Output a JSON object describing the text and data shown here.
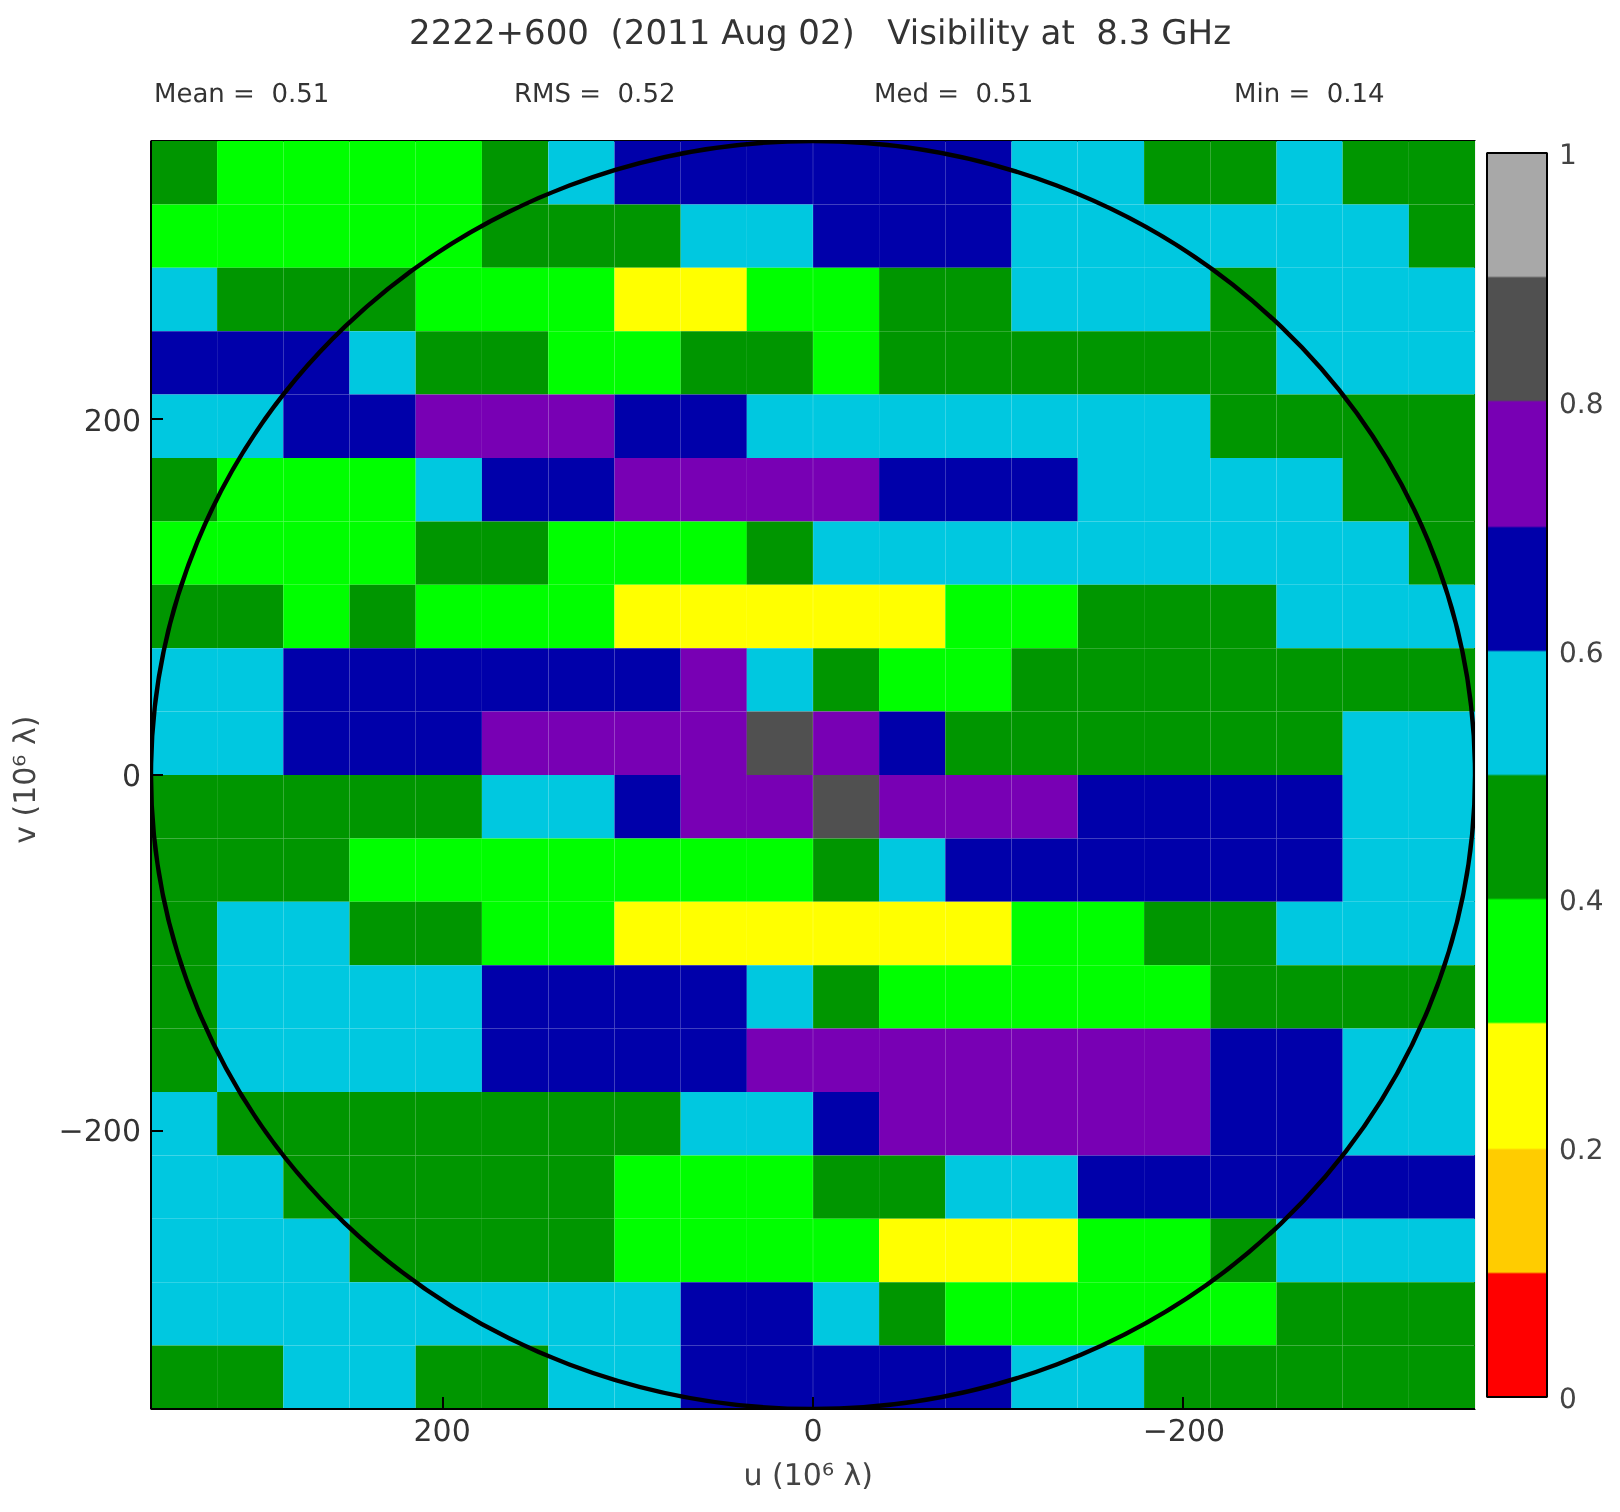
{
  "chart_data": {
    "type": "heatmap",
    "title": "2222+600  (2011 Aug 02)   Visibility at  8.3 GHz",
    "annotations": [
      "Mean =  0.51",
      "RMS =  0.52",
      "Med =  0.51",
      "Min =  0.14"
    ],
    "xlabel": "u  (10⁶ λ)",
    "ylabel": "v  (10⁶ λ)",
    "xlim": [
      357,
      -357
    ],
    "ylim": [
      -357,
      357
    ],
    "xticks": [
      200,
      0,
      {
        "value": -200,
        "label": "−200"
      }
    ],
    "yticks": [
      {
        "value": -200,
        "label": "−200"
      },
      0,
      200
    ],
    "clim": [
      0,
      1
    ],
    "cticks": [
      0,
      0.2,
      0.4,
      0.6,
      0.8,
      1
    ],
    "colors": [
      "#ff0000",
      "#ffcc00",
      "#ffff00",
      "#00ff00",
      "#009600",
      "#00c8e0",
      "#0000aa",
      "#7800b4",
      "#505050",
      "#a8a8a8"
    ],
    "x": [
      339.2,
      303.5,
      267.8,
      232.1,
      196.4,
      160.7,
      124.9,
      89.2,
      53.5,
      17.9,
      -17.9,
      -53.5,
      -89.2,
      -124.9,
      -160.7,
      -196.4,
      -232.1,
      -267.8,
      -303.5,
      -339.2
    ],
    "cells": [
      [
        0.45,
        0.35,
        0.35,
        0.35,
        0.35,
        0.45,
        0.55,
        0.65,
        0.65,
        0.65,
        0.65,
        0.65,
        0.65,
        0.55,
        0.55,
        0.45,
        0.45,
        0.55,
        0.45,
        0.45
      ],
      [
        0.35,
        0.35,
        0.35,
        0.35,
        0.35,
        0.45,
        0.45,
        0.45,
        0.55,
        0.55,
        0.65,
        0.65,
        0.65,
        0.55,
        0.55,
        0.55,
        0.55,
        0.55,
        0.55,
        0.45
      ],
      [
        0.55,
        0.45,
        0.45,
        0.45,
        0.35,
        0.35,
        0.35,
        0.25,
        0.25,
        0.35,
        0.35,
        0.45,
        0.45,
        0.55,
        0.55,
        0.55,
        0.45,
        0.55,
        0.55,
        0.55
      ],
      [
        0.65,
        0.65,
        0.65,
        0.55,
        0.45,
        0.45,
        0.35,
        0.35,
        0.45,
        0.45,
        0.35,
        0.45,
        0.45,
        0.45,
        0.45,
        0.45,
        0.45,
        0.55,
        0.55,
        0.55
      ],
      [
        0.55,
        0.55,
        0.65,
        0.65,
        0.75,
        0.75,
        0.75,
        0.65,
        0.65,
        0.55,
        0.55,
        0.55,
        0.55,
        0.55,
        0.55,
        0.55,
        0.45,
        0.45,
        0.45,
        0.45
      ],
      [
        0.45,
        0.35,
        0.35,
        0.35,
        0.55,
        0.65,
        0.65,
        0.75,
        0.75,
        0.75,
        0.75,
        0.65,
        0.65,
        0.65,
        0.55,
        0.55,
        0.55,
        0.55,
        0.45,
        0.45
      ],
      [
        0.35,
        0.35,
        0.35,
        0.35,
        0.45,
        0.45,
        0.35,
        0.35,
        0.35,
        0.45,
        0.55,
        0.55,
        0.55,
        0.55,
        0.55,
        0.55,
        0.55,
        0.55,
        0.55,
        0.45
      ],
      [
        0.45,
        0.45,
        0.35,
        0.45,
        0.35,
        0.35,
        0.35,
        0.25,
        0.25,
        0.25,
        0.25,
        0.25,
        0.35,
        0.35,
        0.45,
        0.45,
        0.45,
        0.55,
        0.55,
        0.55
      ],
      [
        0.55,
        0.55,
        0.65,
        0.65,
        0.65,
        0.65,
        0.65,
        0.65,
        0.75,
        0.55,
        0.45,
        0.35,
        0.35,
        0.45,
        0.45,
        0.45,
        0.45,
        0.45,
        0.45,
        0.45
      ],
      [
        0.55,
        0.55,
        0.65,
        0.65,
        0.65,
        0.75,
        0.75,
        0.75,
        0.75,
        0.85,
        0.75,
        0.65,
        0.45,
        0.45,
        0.45,
        0.45,
        0.45,
        0.45,
        0.55,
        0.55
      ],
      [
        0.45,
        0.45,
        0.45,
        0.45,
        0.45,
        0.55,
        0.55,
        0.65,
        0.75,
        0.75,
        0.85,
        0.75,
        0.75,
        0.75,
        0.65,
        0.65,
        0.65,
        0.65,
        0.55,
        0.55
      ],
      [
        0.45,
        0.45,
        0.45,
        0.35,
        0.35,
        0.35,
        0.35,
        0.35,
        0.35,
        0.35,
        0.45,
        0.55,
        0.65,
        0.65,
        0.65,
        0.65,
        0.65,
        0.65,
        0.55,
        0.55
      ],
      [
        0.45,
        0.55,
        0.55,
        0.45,
        0.45,
        0.35,
        0.35,
        0.25,
        0.25,
        0.25,
        0.25,
        0.25,
        0.25,
        0.35,
        0.35,
        0.45,
        0.45,
        0.55,
        0.55,
        0.55
      ],
      [
        0.45,
        0.55,
        0.55,
        0.55,
        0.55,
        0.65,
        0.65,
        0.65,
        0.65,
        0.55,
        0.45,
        0.35,
        0.35,
        0.35,
        0.35,
        0.35,
        0.45,
        0.45,
        0.45,
        0.45
      ],
      [
        0.45,
        0.55,
        0.55,
        0.55,
        0.55,
        0.65,
        0.65,
        0.65,
        0.65,
        0.75,
        0.75,
        0.75,
        0.75,
        0.75,
        0.75,
        0.75,
        0.65,
        0.65,
        0.55,
        0.55
      ],
      [
        0.55,
        0.45,
        0.45,
        0.45,
        0.45,
        0.45,
        0.45,
        0.45,
        0.55,
        0.55,
        0.65,
        0.75,
        0.75,
        0.75,
        0.75,
        0.75,
        0.65,
        0.65,
        0.55,
        0.55
      ],
      [
        0.55,
        0.55,
        0.45,
        0.45,
        0.45,
        0.45,
        0.45,
        0.35,
        0.35,
        0.35,
        0.45,
        0.45,
        0.55,
        0.55,
        0.65,
        0.65,
        0.65,
        0.65,
        0.65,
        0.65
      ],
      [
        0.55,
        0.55,
        0.55,
        0.45,
        0.45,
        0.45,
        0.45,
        0.35,
        0.35,
        0.35,
        0.35,
        0.25,
        0.25,
        0.25,
        0.35,
        0.35,
        0.45,
        0.55,
        0.55,
        0.55
      ],
      [
        0.55,
        0.55,
        0.55,
        0.55,
        0.55,
        0.55,
        0.55,
        0.55,
        0.65,
        0.65,
        0.55,
        0.45,
        0.35,
        0.35,
        0.35,
        0.35,
        0.35,
        0.45,
        0.45,
        0.45
      ],
      [
        0.45,
        0.45,
        0.55,
        0.55,
        0.45,
        0.45,
        0.55,
        0.55,
        0.65,
        0.65,
        0.65,
        0.65,
        0.65,
        0.55,
        0.55,
        0.45,
        0.45,
        0.45,
        0.45,
        0.45
      ]
    ],
    "grid": false
  }
}
